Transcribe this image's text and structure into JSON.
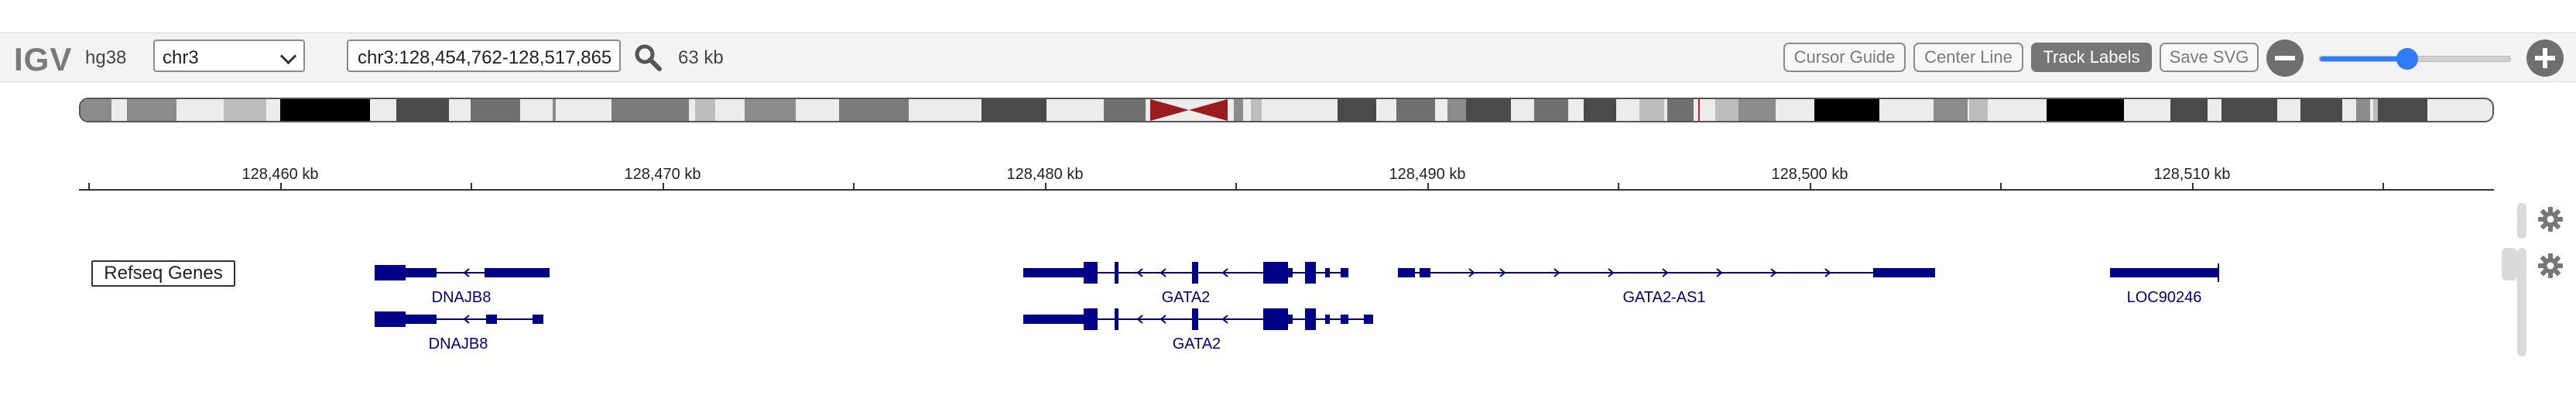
{
  "navbar": {
    "logo": "IGV",
    "genome": "hg38",
    "chromosome": "chr3",
    "locus": "chr3:128,454,762-128,517,865",
    "window_width": "63 kb",
    "buttons": {
      "cursor_guide": "Cursor Guide",
      "center_line": "Center Line",
      "track_labels": "Track Labels",
      "save_svg": "Save SVG"
    },
    "zoom_level": 0.46
  },
  "ruler": {
    "ticks": [
      "128,460 kb",
      "128,470 kb",
      "128,480 kb",
      "128,490 kb",
      "128,500 kb",
      "128,510 kb"
    ]
  },
  "track": {
    "name": "Refseq Genes",
    "gene_color": "#000088",
    "genes": [
      "DNAJB8",
      "DNAJB8",
      "GATA2",
      "GATA2",
      "GATA2-AS1",
      "LOC90246"
    ]
  },
  "colors": {
    "accent": "#2e7cf6",
    "centromere": "#9b1c1c",
    "active_button": "#767676"
  }
}
